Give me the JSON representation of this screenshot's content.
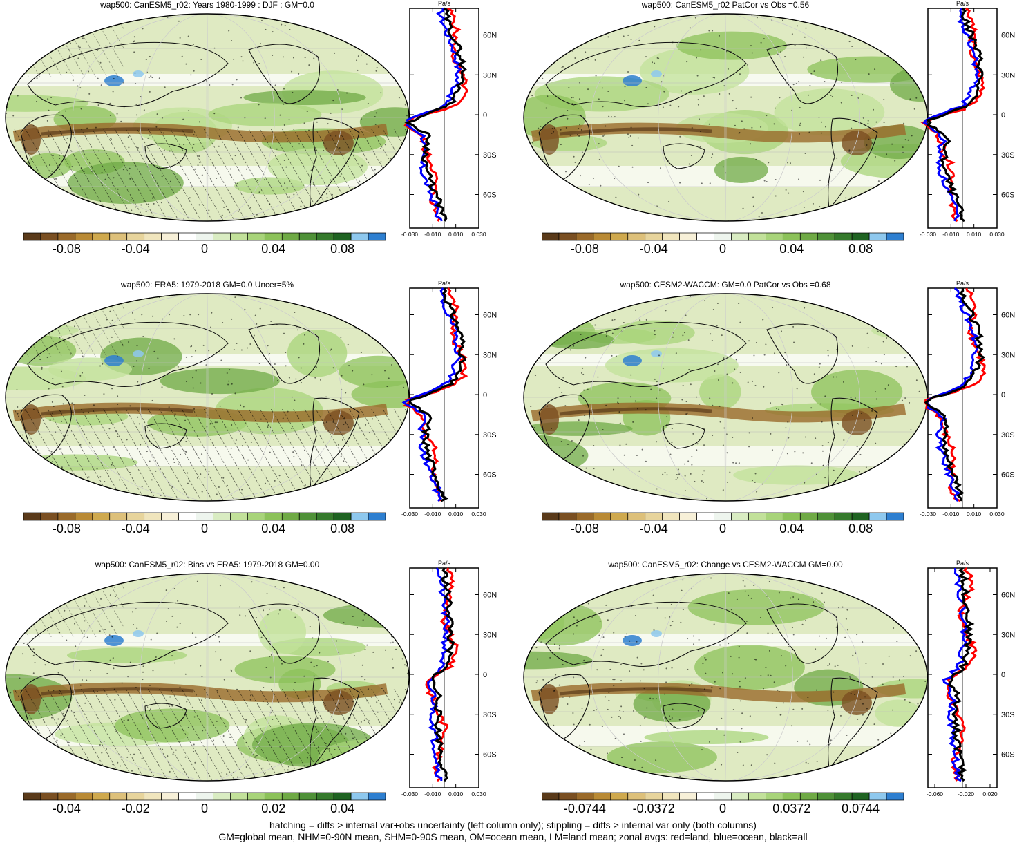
{
  "panels": [
    {
      "title": "wap500: CanESM5_r02: Years 1980-1999 : DJF : GM=0.0",
      "colorbar_labels": [
        "-0.08",
        "-0.04",
        "0",
        "0.04",
        "0.08"
      ],
      "zonal_unit": "Pa/s",
      "zonal_x_ticks": [
        "-0.030",
        "-0.010",
        "0.010",
        "0.030"
      ],
      "zonal_y_ticks": [
        "60N",
        "30N",
        "0",
        "30S",
        "60S"
      ],
      "hatched": true
    },
    {
      "title": "wap500: CanESM5_r02 PatCor vs Obs =0.56",
      "colorbar_labels": [
        "-0.08",
        "-0.04",
        "0",
        "0.04",
        "0.08"
      ],
      "zonal_unit": "Pa/s",
      "zonal_x_ticks": [
        "-0.030",
        "-0.010",
        "0.010",
        "0.030"
      ],
      "zonal_y_ticks": [
        "60N",
        "30N",
        "0",
        "30S",
        "60S"
      ],
      "hatched": false
    },
    {
      "title": "wap500: ERA5: 1979-2018 GM=0.0 Uncer=5%",
      "colorbar_labels": [
        "-0.08",
        "-0.04",
        "0",
        "0.04",
        "0.08"
      ],
      "zonal_unit": "Pa/s",
      "zonal_x_ticks": [
        "-0.030",
        "-0.010",
        "0.010",
        "0.030"
      ],
      "zonal_y_ticks": [
        "60N",
        "30N",
        "0",
        "30S",
        "60S"
      ],
      "hatched": true
    },
    {
      "title": "wap500: CESM2-WACCM: GM=0.0 PatCor vs Obs =0.68",
      "colorbar_labels": [
        "-0.08",
        "-0.04",
        "0",
        "0.04",
        "0.08"
      ],
      "zonal_unit": "Pa/s",
      "zonal_x_ticks": [
        "-0.030",
        "-0.010",
        "0.010",
        "0.030"
      ],
      "zonal_y_ticks": [
        "60N",
        "30N",
        "0",
        "30S",
        "60S"
      ],
      "hatched": false
    },
    {
      "title": "wap500: CanESM5_r02: Bias vs ERA5: 1979-2018 GM=0.00",
      "colorbar_labels": [
        "-0.04",
        "-0.02",
        "0",
        "0.02",
        "0.04"
      ],
      "zonal_unit": "Pa/s",
      "zonal_x_ticks": [
        "-0.030",
        "-0.010",
        "0.010",
        "0.030"
      ],
      "zonal_y_ticks": [
        "60N",
        "30N",
        "0",
        "30S",
        "60S"
      ],
      "hatched": true
    },
    {
      "title": "wap500: CanESM5_r02: Change vs CESM2-WACCM GM=0.00",
      "colorbar_labels": [
        "-0.0744",
        "-0.0372",
        "0",
        "0.0372",
        "0.0744"
      ],
      "zonal_unit": "Pa/s",
      "zonal_x_ticks": [
        "-0.060",
        "-0.020",
        "0.020"
      ],
      "zonal_y_ticks": [
        "60N",
        "30N",
        "0",
        "30S",
        "60S"
      ],
      "hatched": false
    }
  ],
  "colors": {
    "palette": [
      "#5a3a1a",
      "#7a4f22",
      "#9a6a2a",
      "#b98a35",
      "#cfa94e",
      "#ddc07a",
      "#e7d49c",
      "#f0e5bd",
      "#f7f0d8",
      "#ffffff",
      "#eef5ee",
      "#d9ecc2",
      "#c2e19a",
      "#a8d47a",
      "#8cc25a",
      "#6faa45",
      "#4f9138",
      "#357a2c",
      "#1f6322",
      "#8ec8ee",
      "#2e7fd0"
    ],
    "land_line": "red",
    "ocean_line": "blue",
    "all_line": "black"
  },
  "footer": {
    "line1": "hatching = diffs > internal var+obs uncertainty (left column only); stippling = diffs > internal var only (both columns)",
    "line2": "GM=global mean, NHM=0-90N mean, SHM=0-90S mean, OM=ocean mean, LM=land mean; zonal avgs: red=land, blue=ocean, black=all"
  }
}
